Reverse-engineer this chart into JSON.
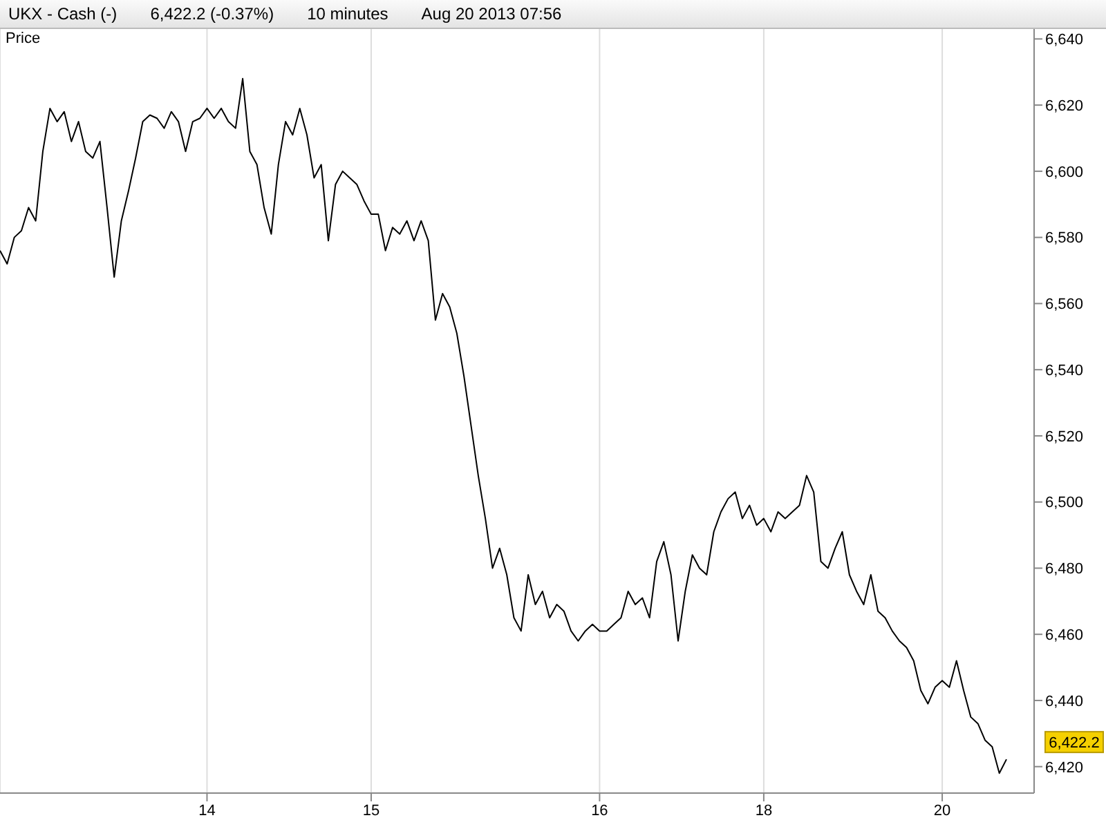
{
  "chart_data": {
    "type": "line",
    "title": "UKX - Cash (-)",
    "ylabel": "Price",
    "annotations": [
      "6,422.2 (-0.37%)",
      "10 minutes",
      "Aug 20 2013 07:56",
      "6,422.2"
    ],
    "categories": [
      null,
      null,
      null,
      null,
      null,
      null,
      null,
      null,
      null,
      null,
      null,
      null,
      null,
      null,
      null,
      null,
      null,
      null,
      null,
      null,
      null,
      null,
      null,
      null,
      null,
      null,
      null,
      null,
      null,
      "14",
      null,
      null,
      null,
      null,
      null,
      null,
      null,
      null,
      null,
      null,
      null,
      null,
      null,
      null,
      null,
      null,
      null,
      null,
      null,
      null,
      null,
      null,
      "15",
      null,
      null,
      null,
      null,
      null,
      null,
      null,
      null,
      null,
      null,
      null,
      null,
      null,
      null,
      null,
      null,
      null,
      null,
      null,
      null,
      null,
      null,
      null,
      null,
      null,
      null,
      null,
      null,
      null,
      null,
      null,
      "16",
      null,
      null,
      null,
      null,
      null,
      null,
      null,
      null,
      null,
      null,
      null,
      null,
      null,
      null,
      null,
      null,
      null,
      null,
      null,
      null,
      null,
      null,
      "18",
      null,
      null,
      null,
      null,
      null,
      null,
      null,
      null,
      null,
      null,
      null,
      null,
      null,
      null,
      null,
      null,
      null,
      null,
      null,
      null,
      null,
      null,
      null,
      null,
      "20",
      null,
      null,
      null,
      null,
      null,
      null,
      null,
      null,
      null
    ],
    "values": [
      6576,
      6572,
      6580,
      6582,
      6589,
      6585,
      6606,
      6619,
      6615,
      6618,
      6609,
      6615,
      6606,
      6604,
      6609,
      6589,
      6568,
      6585,
      6594,
      6604,
      6615,
      6617,
      6616,
      6613,
      6618,
      6615,
      6606,
      6615,
      6616,
      6619,
      6616,
      6619,
      6615,
      6613,
      6628,
      6606,
      6602,
      6589,
      6581,
      6602,
      6615,
      6611,
      6619,
      6611,
      6598,
      6602,
      6579,
      6596,
      6600,
      6598,
      6596,
      6591,
      6587,
      6587,
      6576,
      6583,
      6581,
      6585,
      6579,
      6585,
      6579,
      6555,
      6563,
      6559,
      6551,
      6538,
      6523,
      6508,
      6495,
      6480,
      6486,
      6478,
      6465,
      6461,
      6478,
      6469,
      6473,
      6465,
      6469,
      6467,
      6461,
      6458,
      6461,
      6463,
      6461,
      6461,
      6463,
      6465,
      6473,
      6469,
      6471,
      6465,
      6482,
      6488,
      6478,
      6458,
      6473,
      6484,
      6480,
      6478,
      6491,
      6497,
      6501,
      6503,
      6495,
      6499,
      6493,
      6495,
      6491,
      6497,
      6495,
      6497,
      6499,
      6508,
      6503,
      6482,
      6480,
      6486,
      6491,
      6478,
      6473,
      6469,
      6478,
      6467,
      6465,
      6461,
      6458,
      6456,
      6452,
      6443,
      6439,
      6444,
      6446,
      6444,
      6452,
      6443,
      6435,
      6433,
      6428,
      6426,
      6418,
      6422.2
    ],
    "color": "#000000",
    "line_style": "solid",
    "ylim": [
      6412,
      6643
    ],
    "yticks": [
      {
        "value": 6420,
        "label": "6,420"
      },
      {
        "value": 6440,
        "label": "6,440"
      },
      {
        "value": 6460,
        "label": "6,460"
      },
      {
        "value": 6480,
        "label": "6,480"
      },
      {
        "value": 6500,
        "label": "6,500"
      },
      {
        "value": 6520,
        "label": "6,520"
      },
      {
        "value": 6540,
        "label": "6,540"
      },
      {
        "value": 6560,
        "label": "6,560"
      },
      {
        "value": 6580,
        "label": "6,580"
      },
      {
        "value": 6600,
        "label": "6,600"
      },
      {
        "value": 6620,
        "label": "6,620"
      },
      {
        "value": 6640,
        "label": "6,640"
      }
    ],
    "grid": "x"
  }
}
